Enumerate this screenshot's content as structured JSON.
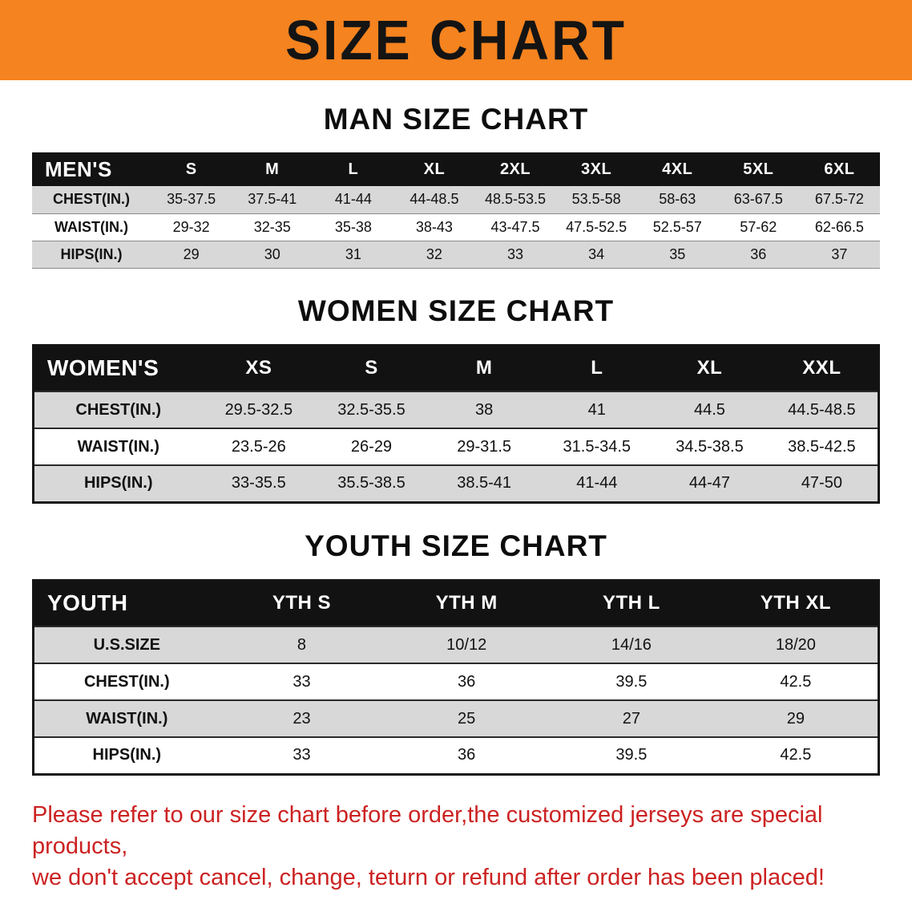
{
  "banner": {
    "title": "SIZE CHART",
    "bg_color": "#f5831f",
    "title_color": "#141414"
  },
  "sections": {
    "men": {
      "heading": "MAN SIZE CHART",
      "table": {
        "header": [
          "MEN'S",
          "S",
          "M",
          "L",
          "XL",
          "2XL",
          "3XL",
          "4XL",
          "5XL",
          "6XL"
        ],
        "rows": [
          [
            "CHEST(IN.)",
            "35-37.5",
            "37.5-41",
            "41-44",
            "44-48.5",
            "48.5-53.5",
            "53.5-58",
            "58-63",
            "63-67.5",
            "67.5-72"
          ],
          [
            "WAIST(IN.)",
            "29-32",
            "32-35",
            "35-38",
            "38-43",
            "43-47.5",
            "47.5-52.5",
            "52.5-57",
            "57-62",
            "62-66.5"
          ],
          [
            "HIPS(IN.)",
            "29",
            "30",
            "31",
            "32",
            "33",
            "34",
            "35",
            "36",
            "37"
          ]
        ]
      }
    },
    "women": {
      "heading": "WOMEN SIZE CHART",
      "table": {
        "header": [
          "WOMEN'S",
          "XS",
          "S",
          "M",
          "L",
          "XL",
          "XXL"
        ],
        "rows": [
          [
            "CHEST(IN.)",
            "29.5-32.5",
            "32.5-35.5",
            "38",
            "41",
            "44.5",
            "44.5-48.5"
          ],
          [
            "WAIST(IN.)",
            "23.5-26",
            "26-29",
            "29-31.5",
            "31.5-34.5",
            "34.5-38.5",
            "38.5-42.5"
          ],
          [
            "HIPS(IN.)",
            "33-35.5",
            "35.5-38.5",
            "38.5-41",
            "41-44",
            "44-47",
            "47-50"
          ]
        ]
      }
    },
    "youth": {
      "heading": "YOUTH SIZE CHART",
      "table": {
        "header": [
          "YOUTH",
          "YTH S",
          "YTH M",
          "YTH L",
          "YTH XL"
        ],
        "rows": [
          [
            "U.S.SIZE",
            "8",
            "10/12",
            "14/16",
            "18/20"
          ],
          [
            "CHEST(IN.)",
            "33",
            "36",
            "39.5",
            "42.5"
          ],
          [
            "WAIST(IN.)",
            "23",
            "25",
            "27",
            "29"
          ],
          [
            "HIPS(IN.)",
            "33",
            "36",
            "39.5",
            "42.5"
          ]
        ]
      }
    }
  },
  "table_style": {
    "header_bg": "#121212",
    "stripe_bg": "#d8d8d8"
  },
  "disclaimer": {
    "line1": "Please refer to our size chart before order,the customized jerseys are special products,",
    "line2": "we don't accept cancel, change, teturn or refund after order has been placed!",
    "color": "#cc2222"
  }
}
